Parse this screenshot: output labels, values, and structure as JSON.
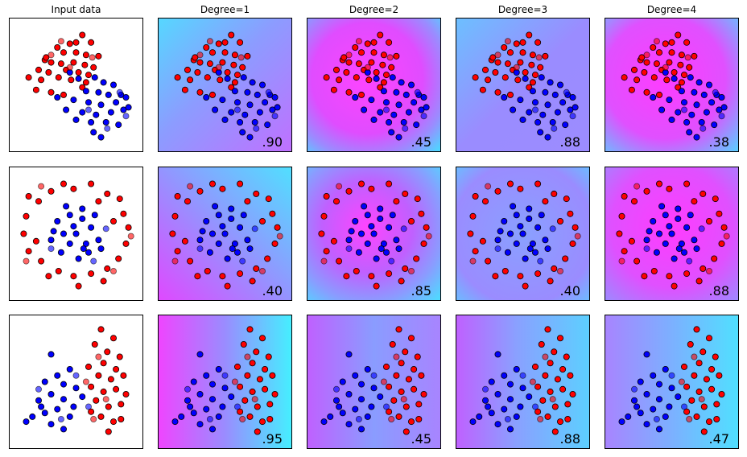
{
  "titles": [
    "Input data",
    "Degree=1",
    "Degree=2",
    "Degree=3",
    "Degree=4"
  ],
  "xlim": [
    0,
    100
  ],
  "ylim": [
    0,
    100
  ],
  "scores": [
    [
      {
        "value": 0.9,
        "label": ".90"
      },
      {
        "value": 0.45,
        "label": ".45"
      },
      {
        "value": 0.88,
        "label": ".88"
      },
      {
        "value": 0.38,
        "label": ".38"
      }
    ],
    [
      {
        "value": 0.4,
        "label": ".40"
      },
      {
        "value": 0.85,
        "label": ".85"
      },
      {
        "value": 0.4,
        "label": ".40"
      },
      {
        "value": 0.88,
        "label": ".88"
      }
    ],
    [
      {
        "value": 0.95,
        "label": ".95"
      },
      {
        "value": 0.45,
        "label": ".45"
      },
      {
        "value": 0.88,
        "label": ".88"
      },
      {
        "value": 0.47,
        "label": ".47"
      }
    ]
  ],
  "datasets": [
    {
      "groups": [
        {
          "color": "#ff0000",
          "opacity": 1,
          "x": [
            55,
            45,
            62,
            35,
            40,
            50,
            58,
            68,
            25,
            30,
            38,
            48,
            57,
            64,
            20,
            28,
            42,
            52,
            60,
            12,
            22,
            36,
            46,
            58,
            18,
            30,
            40,
            55,
            26,
            50
          ],
          "y": [
            90,
            83,
            84,
            80,
            76,
            76,
            74,
            73,
            70,
            68,
            67,
            68,
            66,
            64,
            62,
            60,
            62,
            60,
            58,
            56,
            54,
            56,
            54,
            52,
            46,
            44,
            42,
            48,
            72,
            84
          ]
        },
        {
          "color": "#0000ff",
          "opacity": 1,
          "x": [
            45,
            52,
            65,
            72,
            80,
            58,
            68,
            76,
            86,
            35,
            48,
            60,
            70,
            82,
            90,
            42,
            55,
            66,
            78,
            88,
            50,
            62,
            74,
            84,
            64,
            70,
            92
          ],
          "y": [
            60,
            55,
            56,
            52,
            50,
            45,
            44,
            42,
            42,
            40,
            38,
            36,
            34,
            36,
            40,
            30,
            28,
            26,
            28,
            30,
            22,
            20,
            20,
            18,
            12,
            8,
            32
          ]
        },
        {
          "color": "#ff0000",
          "opacity": 0.6,
          "x": [
            38,
            30,
            63,
            45
          ],
          "y": [
            85,
            74,
            72,
            64
          ]
        },
        {
          "color": "#0000ff",
          "opacity": 0.6,
          "x": [
            85,
            75,
            90,
            60
          ],
          "y": [
            44,
            15,
            25,
            30
          ]
        }
      ]
    },
    {
      "groups": [
        {
          "color": "#ff0000",
          "opacity": 1,
          "x": [
            12,
            30,
            48,
            62,
            75,
            85,
            88,
            92,
            90,
            84,
            75,
            62,
            48,
            36,
            22,
            12,
            8,
            10,
            20,
            40,
            68,
            80,
            18,
            28,
            52,
            72
          ],
          "y": [
            80,
            84,
            86,
            90,
            82,
            78,
            66,
            55,
            42,
            30,
            22,
            18,
            16,
            20,
            28,
            36,
            50,
            64,
            76,
            90,
            76,
            60,
            44,
            16,
            8,
            12
          ]
        },
        {
          "color": "#0000ff",
          "opacity": 1,
          "x": [
            35,
            45,
            55,
            62,
            50,
            40,
            30,
            45,
            58,
            68,
            38,
            52,
            60,
            42,
            55,
            65,
            70,
            32,
            48,
            56
          ],
          "y": [
            60,
            65,
            62,
            55,
            50,
            50,
            45,
            42,
            42,
            45,
            35,
            30,
            35,
            72,
            70,
            65,
            38,
            52,
            56,
            38
          ]
        },
        {
          "color": "#ff0000",
          "opacity": 0.6,
          "x": [
            22,
            80,
            10,
            94
          ],
          "y": [
            88,
            20,
            28,
            48
          ]
        },
        {
          "color": "#0000ff",
          "opacity": 0.6,
          "x": [
            64,
            74,
            30
          ],
          "y": [
            28,
            54,
            38
          ]
        }
      ]
    },
    {
      "groups": [
        {
          "color": "#ff0000",
          "opacity": 1,
          "x": [
            70,
            80,
            65,
            75,
            85,
            72,
            82,
            60,
            68,
            78,
            88,
            62,
            72,
            82,
            90,
            66,
            76,
            86,
            70,
            80,
            62,
            86,
            76
          ],
          "y": [
            92,
            85,
            80,
            74,
            70,
            65,
            60,
            62,
            55,
            52,
            55,
            46,
            42,
            44,
            40,
            35,
            30,
            32,
            22,
            18,
            26,
            20,
            10
          ]
        },
        {
          "color": "#0000ff",
          "opacity": 1,
          "x": [
            30,
            45,
            35,
            25,
            40,
            50,
            30,
            40,
            20,
            48,
            35,
            25,
            15,
            45,
            10,
            30,
            40,
            55,
            22
          ],
          "y": [
            72,
            60,
            55,
            50,
            48,
            45,
            40,
            36,
            35,
            30,
            28,
            25,
            22,
            22,
            18,
            16,
            12,
            38,
            30
          ]
        },
        {
          "color": "#ff0000",
          "opacity": 0.6,
          "x": [
            68,
            58,
            74,
            64
          ],
          "y": [
            70,
            50,
            36,
            20
          ]
        },
        {
          "color": "#0000ff",
          "opacity": 0.6,
          "x": [
            50,
            20,
            38,
            60
          ],
          "y": [
            55,
            44,
            20,
            30
          ]
        }
      ]
    }
  ]
}
